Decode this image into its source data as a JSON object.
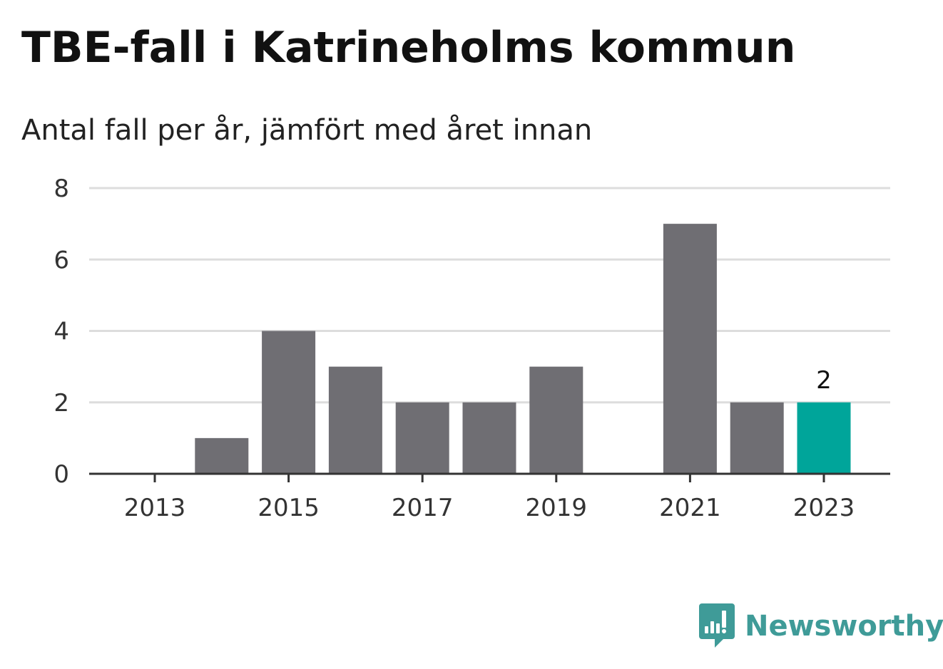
{
  "header": {
    "title": "TBE-fall i Katrineholms kommun",
    "subtitle": "Antal fall per år, jämfört med året innan"
  },
  "brand": {
    "name": "Newsworthy",
    "color": "#3f9b98",
    "icon": "newsworthy-bar-chart-icon"
  },
  "colors": {
    "bar": "#6f6e73",
    "highlight": "#00a59a",
    "grid": "#dddddd",
    "axis": "#333333"
  },
  "chart_data": {
    "type": "bar",
    "categories": [
      "2013",
      "2014",
      "2015",
      "2016",
      "2017",
      "2018",
      "2019",
      "2020",
      "2021",
      "2022",
      "2023"
    ],
    "values": [
      0,
      1,
      4,
      3,
      2,
      2,
      3,
      0,
      7,
      2,
      2
    ],
    "x_tick_labels": [
      "2013",
      "2015",
      "2017",
      "2019",
      "2021",
      "2023"
    ],
    "y_ticks": [
      0,
      2,
      4,
      6,
      8
    ],
    "ylim": [
      0,
      8
    ],
    "highlight_category": "2023",
    "data_labels": [
      {
        "category": "2023",
        "text": "2"
      }
    ],
    "grid": true,
    "title": "TBE-fall i Katrineholms kommun",
    "xlabel": "",
    "ylabel": ""
  }
}
